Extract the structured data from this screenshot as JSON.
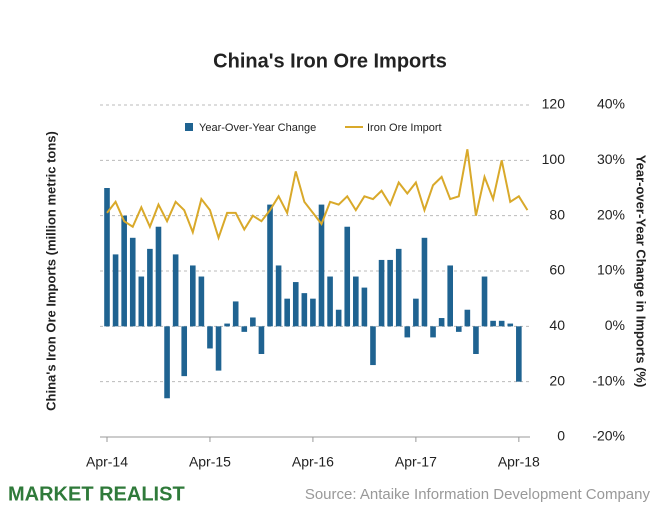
{
  "chart_data": {
    "type": "bar_line",
    "title": "China's Iron Ore Imports",
    "y_label": "China's Iron Ore Imports (million metric tons)",
    "y2_label": "Year-over-Year Change in Imports (%)",
    "categories": [
      "Apr-14",
      null,
      null,
      null,
      null,
      null,
      null,
      null,
      null,
      null,
      null,
      null,
      "Apr-15",
      null,
      null,
      null,
      null,
      null,
      null,
      null,
      null,
      null,
      null,
      null,
      "Apr-16",
      null,
      null,
      null,
      null,
      null,
      null,
      null,
      null,
      null,
      null,
      null,
      "Apr-17",
      null,
      null,
      null,
      null,
      null,
      null,
      null,
      null,
      null,
      null,
      null,
      "Apr-18",
      null
    ],
    "series": [
      {
        "name": "Year-Over-Year Change",
        "type": "bar",
        "axis": "y2",
        "color": "#1f6391",
        "values": [
          25,
          13,
          20,
          16,
          9,
          14,
          18,
          -13,
          13,
          -9,
          11,
          9,
          -4,
          -8,
          0.5,
          4.5,
          -1,
          1.6,
          -5,
          22,
          11,
          5,
          8,
          6,
          5,
          22,
          9,
          3,
          18,
          9,
          7,
          -7,
          12,
          12,
          14,
          -2,
          5,
          16,
          -2,
          1.5,
          11,
          -1,
          3,
          -5,
          9,
          1,
          1,
          0.5,
          -10,
          null
        ]
      },
      {
        "name": "Iron Ore Import",
        "type": "line",
        "color": "#d9a92a",
        "values": [
          81,
          85,
          78,
          76,
          83,
          76,
          84,
          78,
          85,
          82,
          74,
          86,
          82,
          72,
          81,
          81,
          75,
          80,
          78,
          82,
          87,
          81,
          96,
          85,
          81,
          77,
          85,
          84,
          87,
          82,
          87,
          86,
          89,
          84,
          92,
          88,
          92,
          82,
          91,
          94,
          86,
          87,
          104,
          80,
          94,
          86,
          100,
          85,
          87,
          82
        ]
      }
    ],
    "ylim": [
      0,
      120
    ],
    "yticks": [
      0,
      20,
      40,
      60,
      80,
      100,
      120
    ],
    "y2lim": [
      -20,
      40
    ],
    "y2ticks": [
      {
        "value": -20,
        "label": "-20%"
      },
      {
        "value": -10,
        "label": "-10%"
      },
      {
        "value": 0,
        "label": "0%"
      },
      {
        "value": 10,
        "label": "10%"
      },
      {
        "value": 20,
        "label": "20%"
      },
      {
        "value": 30,
        "label": "30%"
      },
      {
        "value": 40,
        "label": "40%"
      }
    ],
    "grid": true,
    "brand": "MARKET REALIST",
    "source": "Source: Antaike Information Development Company"
  }
}
